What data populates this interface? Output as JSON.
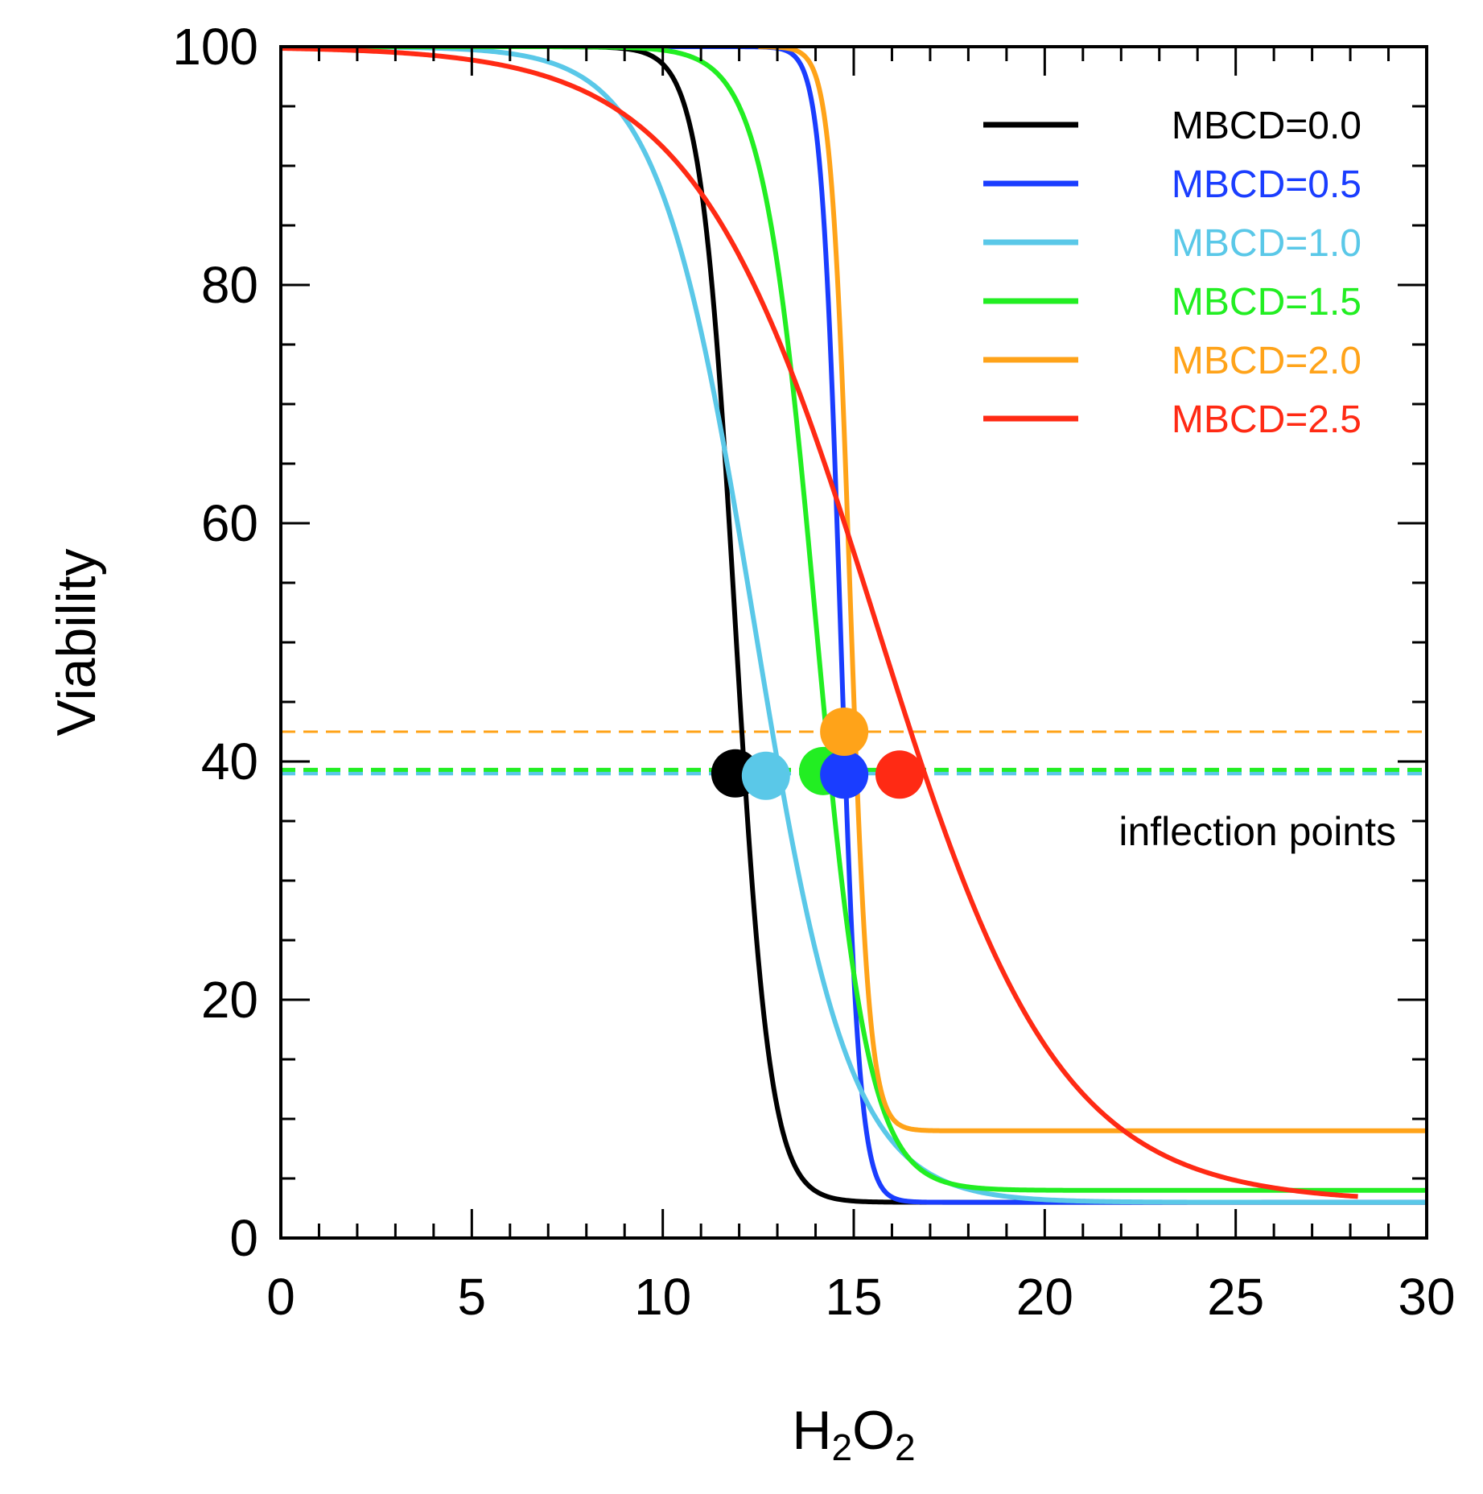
{
  "chart_data": {
    "type": "line",
    "title": "",
    "xlabel": "H2O2",
    "xlabel_parts": {
      "base1": "H",
      "sub1": "2",
      "base2": "O",
      "sub2": "2"
    },
    "ylabel": "Viability",
    "xlim": [
      0,
      30
    ],
    "ylim": [
      0,
      100
    ],
    "x_ticks": [
      0,
      5,
      10,
      15,
      20,
      25,
      30
    ],
    "y_ticks": [
      0,
      20,
      40,
      60,
      80,
      100
    ],
    "x_tick_labels": [
      "0",
      "5",
      "10",
      "15",
      "20",
      "25",
      "30"
    ],
    "y_tick_labels": [
      "0",
      "20",
      "40",
      "60",
      "80",
      "100"
    ],
    "x_minor_step": 1,
    "y_minor_step": 5,
    "grid": false,
    "legend_position": "top-right",
    "series": [
      {
        "name": "MBCD=0.0",
        "color": "#000000",
        "x_start": 0,
        "x_end": 30,
        "top": 100,
        "bottom": 3,
        "midpoint": 11.9,
        "slope": 2.2
      },
      {
        "name": "MBCD=0.5",
        "color": "#1a3dff",
        "x_start": 9.3,
        "x_end": 30,
        "top": 100,
        "bottom": 3,
        "midpoint": 14.65,
        "slope": 4.0
      },
      {
        "name": "MBCD=1.0",
        "color": "#5ac8e8",
        "x_start": 0,
        "x_end": 30,
        "top": 100,
        "bottom": 3,
        "midpoint": 12.4,
        "slope": 0.8
      },
      {
        "name": "MBCD=1.5",
        "color": "#22ee22",
        "x_start": 0,
        "x_end": 30,
        "top": 100,
        "bottom": 4,
        "midpoint": 14.0,
        "slope": 1.45
      },
      {
        "name": "MBCD=2.0",
        "color": "#ffa319",
        "x_start": 12.5,
        "x_end": 30,
        "top": 100,
        "bottom": 9,
        "midpoint": 14.9,
        "slope": 4.0
      },
      {
        "name": "MBCD=2.5",
        "color": "#ff2a14",
        "x_start": 0,
        "x_end": 28.2,
        "top": 100,
        "bottom": 3,
        "midpoint": 15.6,
        "slope": 0.42
      }
    ],
    "inflection_points": [
      {
        "series": "MBCD=0.0",
        "x": 11.9,
        "y": 39.0,
        "color": "#000000"
      },
      {
        "series": "MBCD=1.0",
        "x": 12.7,
        "y": 38.8,
        "color": "#5ac8e8"
      },
      {
        "series": "MBCD=1.5",
        "x": 14.2,
        "y": 39.2,
        "color": "#22ee22"
      },
      {
        "series": "MBCD=0.5",
        "x": 14.75,
        "y": 38.9,
        "color": "#1a3dff"
      },
      {
        "series": "MBCD=2.0",
        "x": 14.75,
        "y": 42.5,
        "color": "#ffa319"
      },
      {
        "series": "MBCD=2.5",
        "x": 16.2,
        "y": 38.9,
        "color": "#ff2a14"
      }
    ],
    "reference_lines": [
      {
        "y": 42.5,
        "color": "#ffa319"
      },
      {
        "y": 39.0,
        "color": "#5ac8e8"
      },
      {
        "y": 39.3,
        "color": "#22ee22"
      }
    ],
    "annotation": "inflection points"
  }
}
